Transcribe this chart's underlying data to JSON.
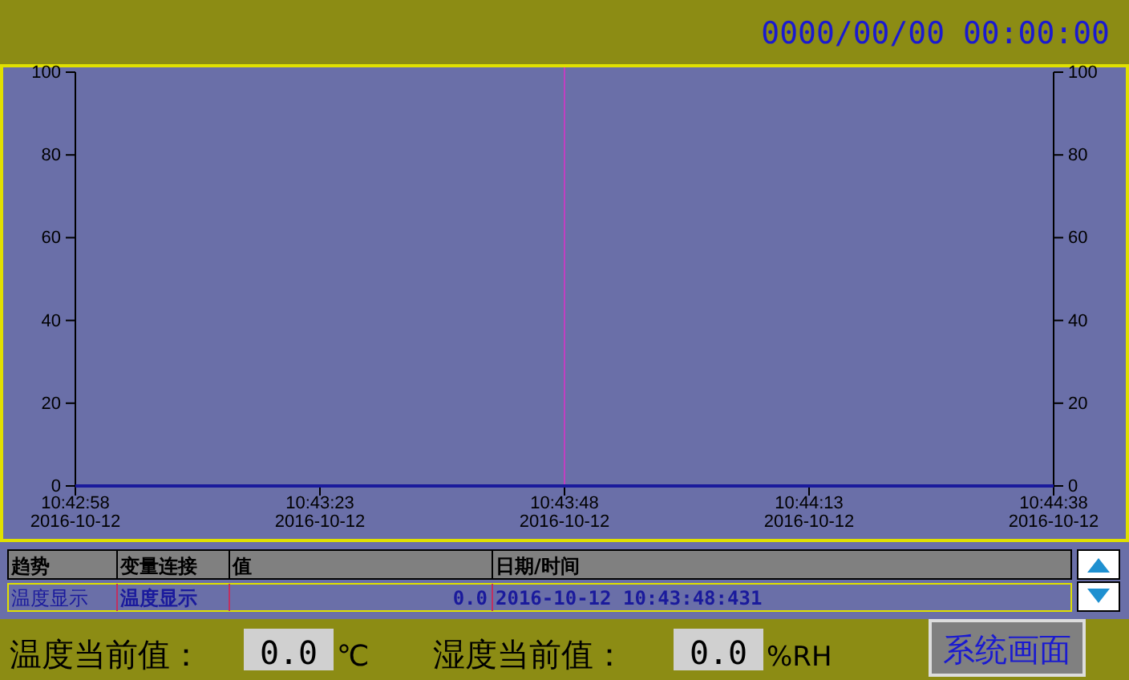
{
  "chart_data": {
    "type": "line",
    "x": [
      "2016-10-12T10:42:58",
      "2016-10-12T10:44:38"
    ],
    "series": [
      {
        "name": "温度显示",
        "color": "#1a1a9c",
        "values": [
          0,
          0
        ]
      }
    ],
    "xlim": [
      "2016-10-12T10:42:58",
      "2016-10-12T10:44:38"
    ],
    "xticks": [
      {
        "value": "2016-10-12T10:42:58",
        "label": "10:42:58\n2016-10-12"
      },
      {
        "value": "2016-10-12T10:43:23",
        "label": "10:43:23\n2016-10-12"
      },
      {
        "value": "2016-10-12T10:43:48",
        "label": "10:43:48\n2016-10-12"
      },
      {
        "value": "2016-10-12T10:44:13",
        "label": "10:44:13\n2016-10-12"
      },
      {
        "value": "2016-10-12T10:44:38",
        "label": "10:44:38\n2016-10-12"
      }
    ],
    "ylim": [
      0,
      100
    ],
    "yticks": [
      0,
      20,
      40,
      60,
      80,
      100
    ],
    "y2lim": [
      0,
      100
    ],
    "y2ticks": [
      0,
      20,
      40,
      60,
      80,
      100
    ],
    "ref_lines": [
      {
        "axis": "x",
        "value": "2016-10-12T10:43:48",
        "color": "#c040c0"
      }
    ],
    "grid": false,
    "legend": false,
    "marker": "none",
    "line_style": "solid",
    "annotations": [
      "0000/00/00 00:00:00",
      "趋势",
      "变量连接",
      "值",
      "日期/时间",
      "温度显示",
      "0.0",
      "2016-10-12 10:43:48:431",
      "温度当前值：",
      "0.0",
      "℃",
      "湿度当前值：",
      "0.0",
      "%RH",
      "系统画面"
    ]
  }
}
